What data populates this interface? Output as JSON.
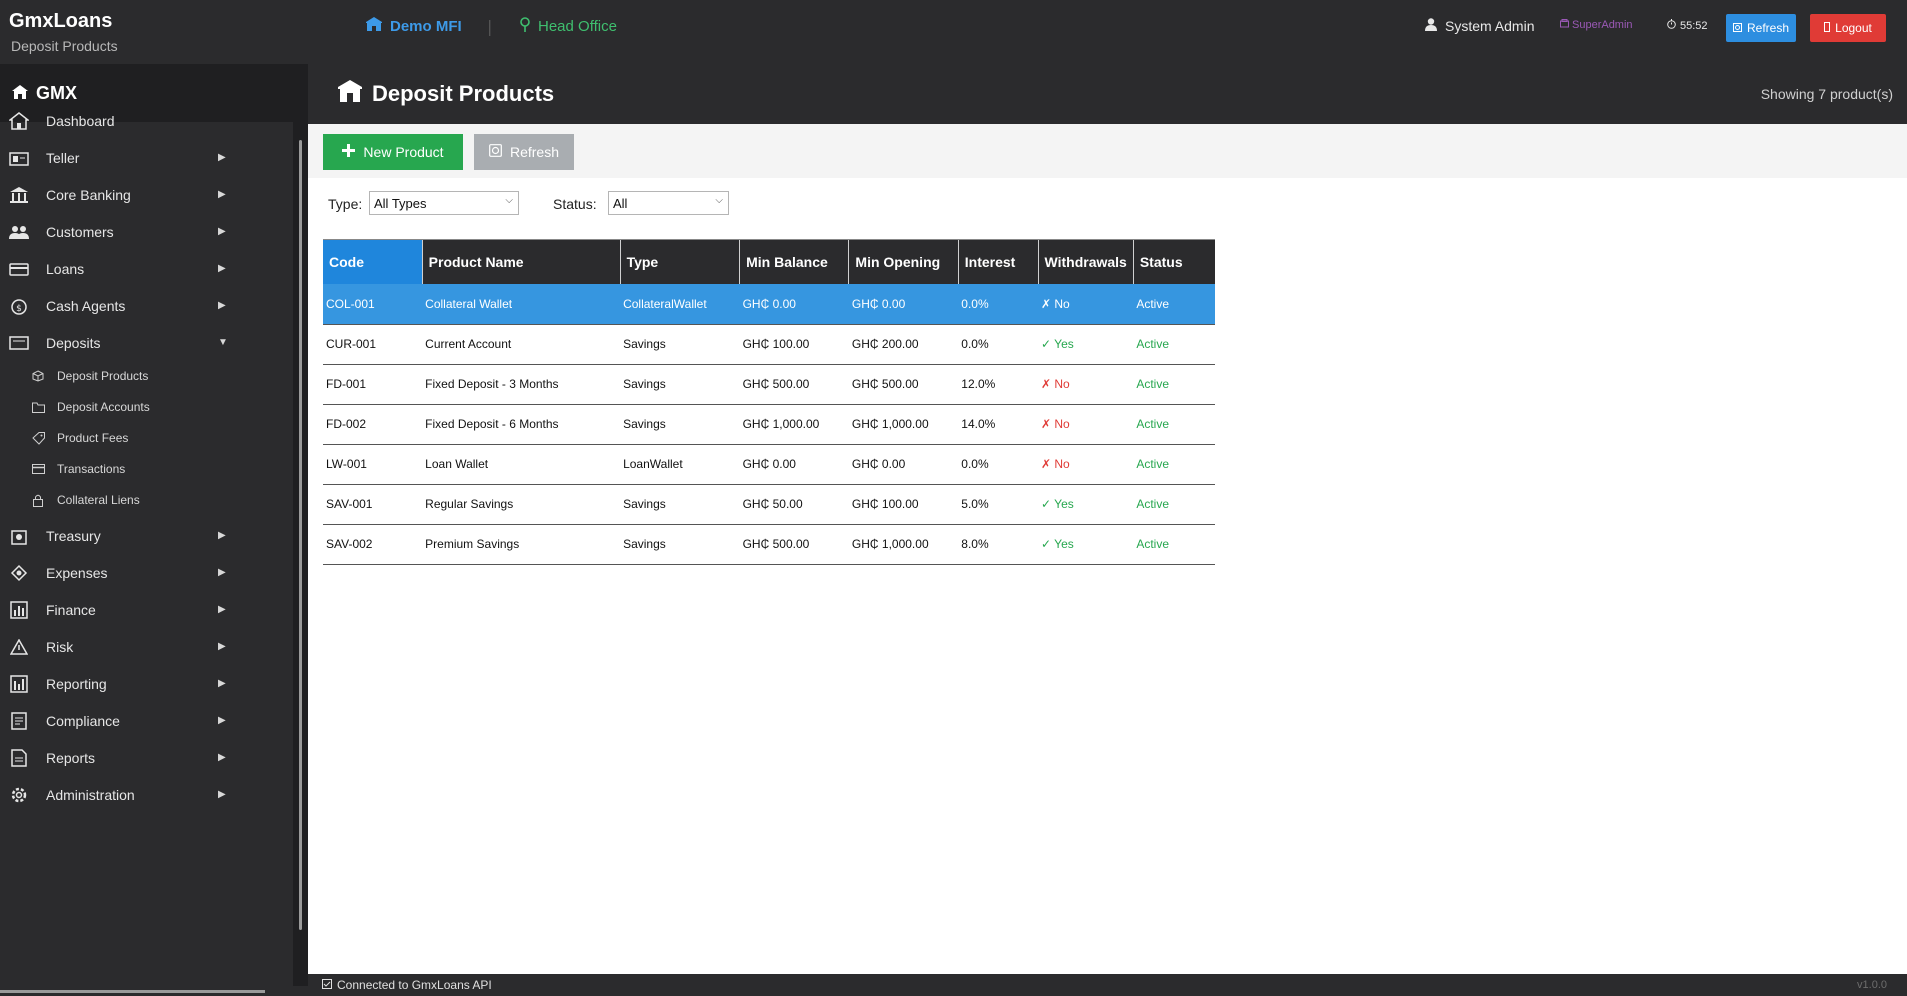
{
  "app": {
    "title": "GmxLoans",
    "subtitle": "Deposit Products"
  },
  "topbar": {
    "org": "Demo MFI",
    "branch": "Head Office",
    "user": "System Admin",
    "role": "SuperAdmin",
    "timer": "55:52",
    "refresh_label": "Refresh",
    "logout_label": "Logout"
  },
  "sidebar": {
    "brand": "GMX",
    "items": [
      {
        "label": "Dashboard",
        "icon": "dashboard-icon",
        "expandable": false
      },
      {
        "label": "Teller",
        "icon": "teller-icon",
        "expandable": true
      },
      {
        "label": "Core Banking",
        "icon": "bank-icon",
        "expandable": true
      },
      {
        "label": "Customers",
        "icon": "customers-icon",
        "expandable": true
      },
      {
        "label": "Loans",
        "icon": "loans-icon",
        "expandable": true
      },
      {
        "label": "Cash Agents",
        "icon": "cash-agents-icon",
        "expandable": true
      },
      {
        "label": "Deposits",
        "icon": "deposits-icon",
        "expandable": true,
        "expanded": true
      },
      {
        "label": "Treasury",
        "icon": "treasury-icon",
        "expandable": true
      },
      {
        "label": "Expenses",
        "icon": "expenses-icon",
        "expandable": true
      },
      {
        "label": "Finance",
        "icon": "finance-icon",
        "expandable": true
      },
      {
        "label": "Risk",
        "icon": "risk-icon",
        "expandable": true
      },
      {
        "label": "Reporting",
        "icon": "reporting-icon",
        "expandable": true
      },
      {
        "label": "Compliance",
        "icon": "compliance-icon",
        "expandable": true
      },
      {
        "label": "Reports",
        "icon": "reports-icon",
        "expandable": true
      },
      {
        "label": "Administration",
        "icon": "administration-icon",
        "expandable": true
      }
    ],
    "deposit_subitems": [
      {
        "label": "Deposit Products",
        "icon": "cube-icon"
      },
      {
        "label": "Deposit Accounts",
        "icon": "folder-icon"
      },
      {
        "label": "Product Fees",
        "icon": "tag-icon"
      },
      {
        "label": "Transactions",
        "icon": "card-icon"
      },
      {
        "label": "Collateral  Liens",
        "icon": "lock-icon"
      }
    ]
  },
  "page": {
    "title": "Deposit Products",
    "showing": "Showing 7 product(s)",
    "new_label": "New Product",
    "refresh_label": "Refresh",
    "filters": {
      "type_label": "Type:",
      "type_value": "All Types",
      "status_label": "Status:",
      "status_value": "All"
    }
  },
  "table": {
    "headers": [
      "Code",
      "Product Name",
      "Type",
      "Min Balance",
      "Min Opening",
      "Interest",
      "Withdrawals",
      "Status"
    ],
    "rows": [
      {
        "code": "COL-001",
        "name": "Collateral Wallet",
        "type": "CollateralWallet",
        "min_balance": "GH₵ 0.00",
        "min_opening": "GH₵ 0.00",
        "interest": "0.0%",
        "withdrawals": "✗ No",
        "withdrawals_ok": false,
        "status": "Active"
      },
      {
        "code": "CUR-001",
        "name": "Current Account",
        "type": "Savings",
        "min_balance": "GH₵ 100.00",
        "min_opening": "GH₵ 200.00",
        "interest": "0.0%",
        "withdrawals": "✓ Yes",
        "withdrawals_ok": true,
        "status": "Active"
      },
      {
        "code": "FD-001",
        "name": "Fixed Deposit - 3 Months",
        "type": "Savings",
        "min_balance": "GH₵ 500.00",
        "min_opening": "GH₵ 500.00",
        "interest": "12.0%",
        "withdrawals": "✗ No",
        "withdrawals_ok": false,
        "status": "Active"
      },
      {
        "code": "FD-002",
        "name": "Fixed Deposit - 6 Months",
        "type": "Savings",
        "min_balance": "GH₵ 1,000.00",
        "min_opening": "GH₵ 1,000.00",
        "interest": "14.0%",
        "withdrawals": "✗ No",
        "withdrawals_ok": false,
        "status": "Active"
      },
      {
        "code": "LW-001",
        "name": "Loan Wallet",
        "type": "LoanWallet",
        "min_balance": "GH₵ 0.00",
        "min_opening": "GH₵ 0.00",
        "interest": "0.0%",
        "withdrawals": "✗ No",
        "withdrawals_ok": false,
        "status": "Active"
      },
      {
        "code": "SAV-001",
        "name": "Regular Savings",
        "type": "Savings",
        "min_balance": "GH₵ 50.00",
        "min_opening": "GH₵ 100.00",
        "interest": "5.0%",
        "withdrawals": "✓ Yes",
        "withdrawals_ok": true,
        "status": "Active"
      },
      {
        "code": "SAV-002",
        "name": "Premium Savings",
        "type": "Savings",
        "min_balance": "GH₵ 500.00",
        "min_opening": "GH₵ 1,000.00",
        "interest": "8.0%",
        "withdrawals": "✓ Yes",
        "withdrawals_ok": true,
        "status": "Active"
      }
    ]
  },
  "statusbar": {
    "text": "Connected to GmxLoans API",
    "version": "v1.0.0"
  }
}
